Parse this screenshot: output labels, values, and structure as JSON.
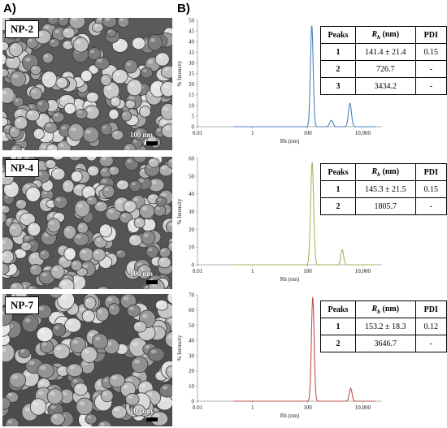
{
  "panel_a_label": "A)",
  "panel_b_label": "B)",
  "samples": [
    {
      "name": "NP-2",
      "scale_bar": "100 nm",
      "table": {
        "headers": [
          "Peaks",
          "Rh (nm)",
          "PDI"
        ],
        "rows": [
          [
            "1",
            "141.4 ± 21.4",
            "0.15"
          ],
          [
            "2",
            "726.7",
            "-"
          ],
          [
            "3",
            "3434.2",
            "-"
          ]
        ]
      }
    },
    {
      "name": "NP-4",
      "scale_bar": "100 nm",
      "table": {
        "headers": [
          "Peaks",
          "Rh (nm)",
          "PDI"
        ],
        "rows": [
          [
            "1",
            "145.3 ± 21.5",
            "0.15"
          ],
          [
            "2",
            "1805.7",
            "-"
          ]
        ]
      }
    },
    {
      "name": "NP-7",
      "scale_bar": "100 nm",
      "table": {
        "headers": [
          "Peaks",
          "Rh (nm)",
          "PDI"
        ],
        "rows": [
          [
            "1",
            "153.2 ± 18.3",
            "0.12"
          ],
          [
            "2",
            "3646.7",
            "-"
          ]
        ]
      }
    }
  ],
  "chart_data": [
    {
      "type": "line",
      "xlabel": "Rh (nm)",
      "ylabel": "% Intensity",
      "x_scale": "log",
      "xlim": [
        0.01,
        50000
      ],
      "x_ticks": [
        "0.01",
        "1",
        "100",
        "10,000"
      ],
      "ylim": [
        0,
        50
      ],
      "y_ticks": [
        0,
        5,
        10,
        15,
        20,
        25,
        30,
        35,
        40,
        45,
        50
      ],
      "color": "#4f81bd",
      "baseline_x": [
        0.2,
        30000
      ],
      "peaks": [
        {
          "center": 141.4,
          "height": 47.5,
          "log_width": 0.05
        },
        {
          "center": 726.7,
          "height": 3,
          "log_width": 0.06
        },
        {
          "center": 3434.2,
          "height": 11,
          "log_width": 0.055
        }
      ]
    },
    {
      "type": "line",
      "xlabel": "Rh (nm)",
      "ylabel": "% Intensity",
      "x_scale": "log",
      "xlim": [
        0.01,
        50000
      ],
      "x_ticks": [
        "0.01",
        "1",
        "100",
        "10,000"
      ],
      "ylim": [
        0,
        60
      ],
      "y_ticks": [
        0,
        10,
        20,
        30,
        40,
        50,
        60
      ],
      "color": "#9bbb59",
      "baseline_x": [
        0.2,
        30000
      ],
      "peaks": [
        {
          "center": 145.3,
          "height": 57.5,
          "log_width": 0.055
        },
        {
          "center": 1805.7,
          "height": 8.5,
          "log_width": 0.05
        }
      ]
    },
    {
      "type": "line",
      "xlabel": "Rh (nm)",
      "ylabel": "% Intensity",
      "x_scale": "log",
      "xlim": [
        0.01,
        50000
      ],
      "x_ticks": [
        "0.01",
        "1",
        "100",
        "10,000"
      ],
      "ylim": [
        0,
        70
      ],
      "y_ticks": [
        0,
        10,
        20,
        30,
        40,
        50,
        60,
        70
      ],
      "color": "#c0504d",
      "baseline_x": [
        0.2,
        30000
      ],
      "peaks": [
        {
          "center": 153.2,
          "height": 68,
          "log_width": 0.05
        },
        {
          "center": 3646.7,
          "height": 8.5,
          "log_width": 0.05
        }
      ]
    }
  ]
}
